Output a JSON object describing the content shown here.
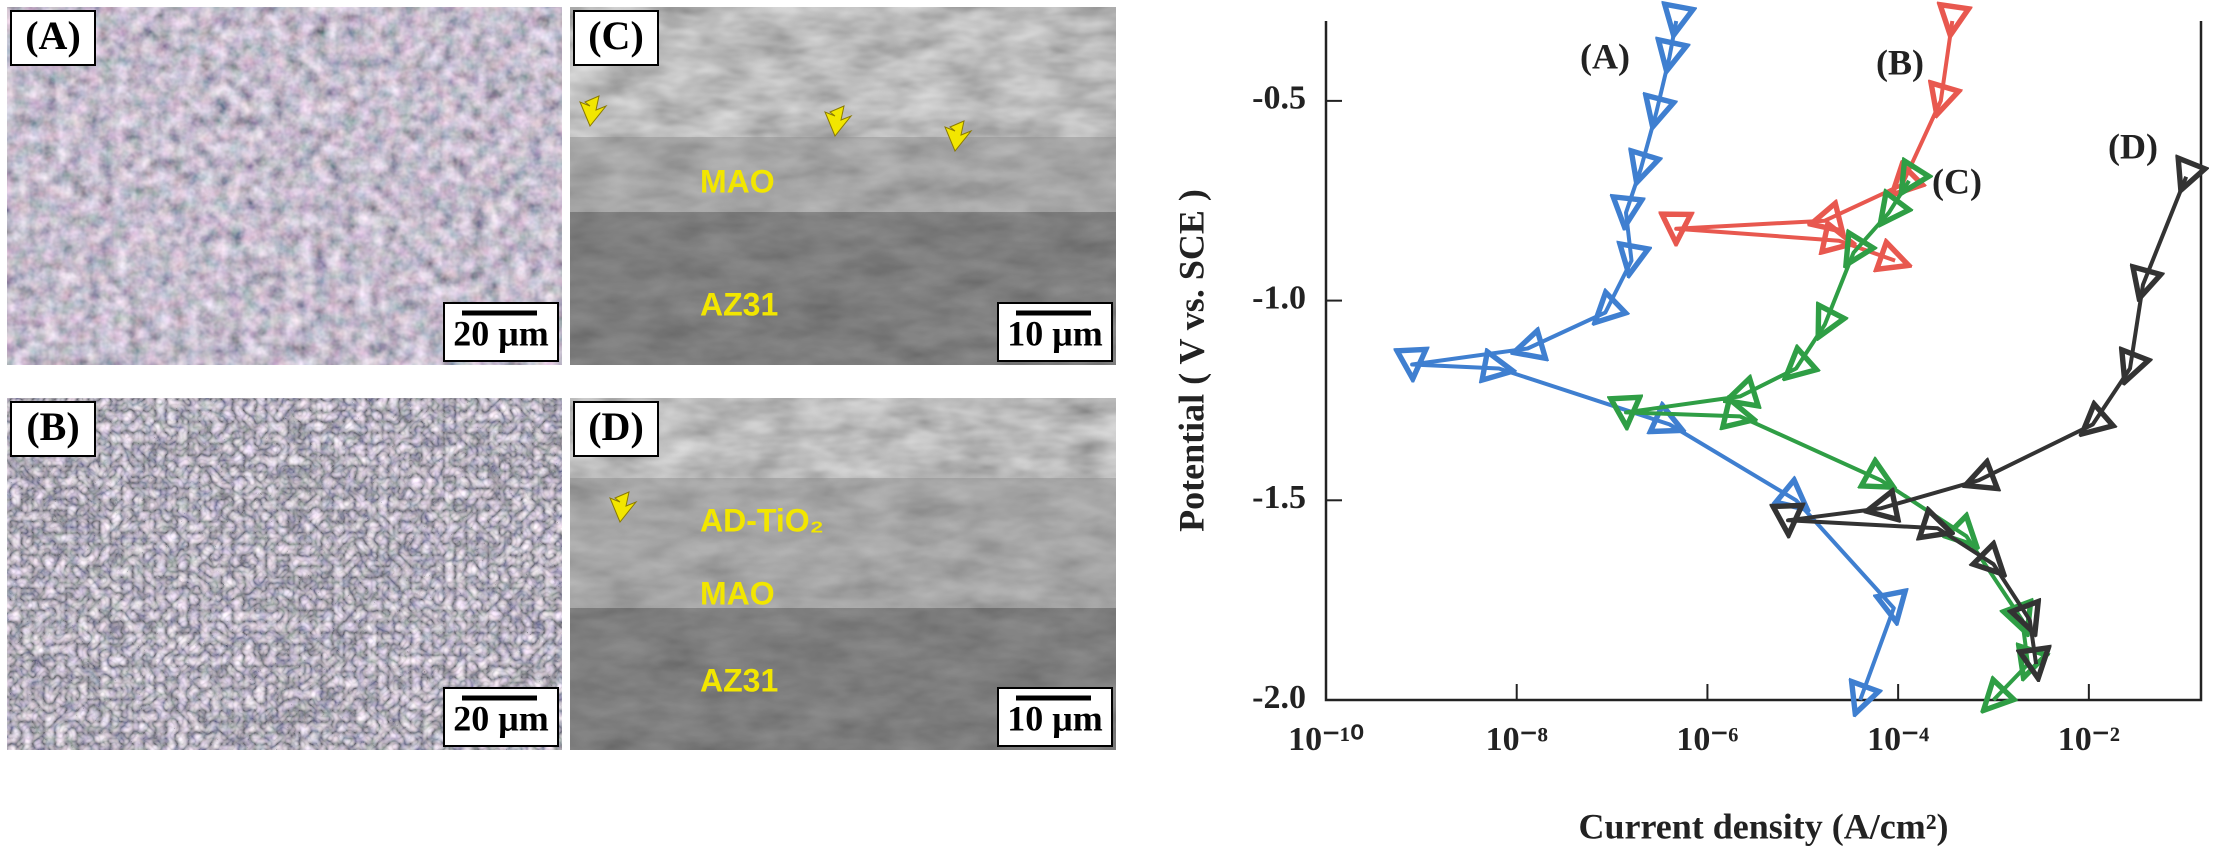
{
  "panels": [
    {
      "label": "(A)",
      "scale_bar": "20 μm"
    },
    {
      "label": "(C)",
      "scale_bar": "10 μm",
      "annotations": [
        "MAO",
        "AZ31"
      ]
    },
    {
      "label": "(B)",
      "scale_bar": "20 μm"
    },
    {
      "label": "(D)",
      "scale_bar": "10 μm",
      "annotations": [
        "AD-TiO₂",
        "MAO",
        "AZ31"
      ]
    }
  ],
  "chart_data": {
    "type": "line",
    "x_label": "Current density (A/cm²)",
    "y_label": "Potential ( V vs. SCE )",
    "log_x": true,
    "xlim": [
      1e-10,
      0.15
    ],
    "ylim": [
      -2.0,
      -0.3
    ],
    "xticks": [
      {
        "value": 1e-10,
        "label": "10⁻¹⁰"
      },
      {
        "value": 1e-08,
        "label": "10⁻⁸"
      },
      {
        "value": 1e-06,
        "label": "10⁻⁶"
      },
      {
        "value": 0.0001,
        "label": "10⁻⁴"
      },
      {
        "value": 0.01,
        "label": "10⁻²"
      }
    ],
    "yticks": [
      -0.5,
      {
        "value": -1.0,
        "label": "-1.0"
      },
      -1.5,
      {
        "value": -2.0,
        "label": "-2.0"
      }
    ],
    "series": [
      {
        "name": "(A)",
        "color": "#3f7fd0",
        "x": [
          4e-05,
          9e-05,
          8.5e-06,
          4e-07,
          6.5e-09,
          8e-10,
          1.3e-08,
          8.5e-08,
          1.6e-07,
          1.4e-07,
          2e-07,
          2.9e-07,
          4e-07,
          4.7e-07
        ],
        "values": [
          -2.0,
          -1.77,
          -1.5,
          -1.31,
          -1.17,
          -1.16,
          -1.12,
          -1.03,
          -0.9,
          -0.78,
          -0.67,
          -0.53,
          -0.39,
          -0.3
        ]
      },
      {
        "name": "(B)",
        "color": "#e8584f",
        "x": [
          9.3e-05,
          2.4e-05,
          4.7e-07,
          1.7e-05,
          0.00011,
          0.00028,
          0.00037
        ],
        "values": [
          -0.9,
          -0.85,
          -0.82,
          -0.8,
          -0.71,
          -0.5,
          -0.3
        ]
      },
      {
        "name": "(C)",
        "color": "#2f9e45",
        "x": [
          0.001,
          0.0023,
          0.002,
          0.00052,
          6.6e-05,
          2.2e-06,
          1.4e-07,
          2.2e-06,
          8.5e-06,
          1.7e-05,
          3.4e-05,
          8e-05,
          0.00013
        ],
        "values": [
          -2.0,
          -1.91,
          -1.8,
          -1.59,
          -1.45,
          -1.29,
          -1.28,
          -1.24,
          -1.17,
          -1.06,
          -0.88,
          -0.78,
          -0.7
        ]
      },
      {
        "name": "(D)",
        "color": "#333333",
        "x": [
          0.0028,
          0.0024,
          0.001,
          0.00026,
          7e-06,
          6.6e-05,
          0.0007,
          0.011,
          0.027,
          0.037,
          0.105
        ],
        "values": [
          -1.91,
          -1.8,
          -1.66,
          -1.57,
          -1.55,
          -1.52,
          -1.45,
          -1.31,
          -1.17,
          -0.96,
          -0.69
        ]
      }
    ]
  }
}
